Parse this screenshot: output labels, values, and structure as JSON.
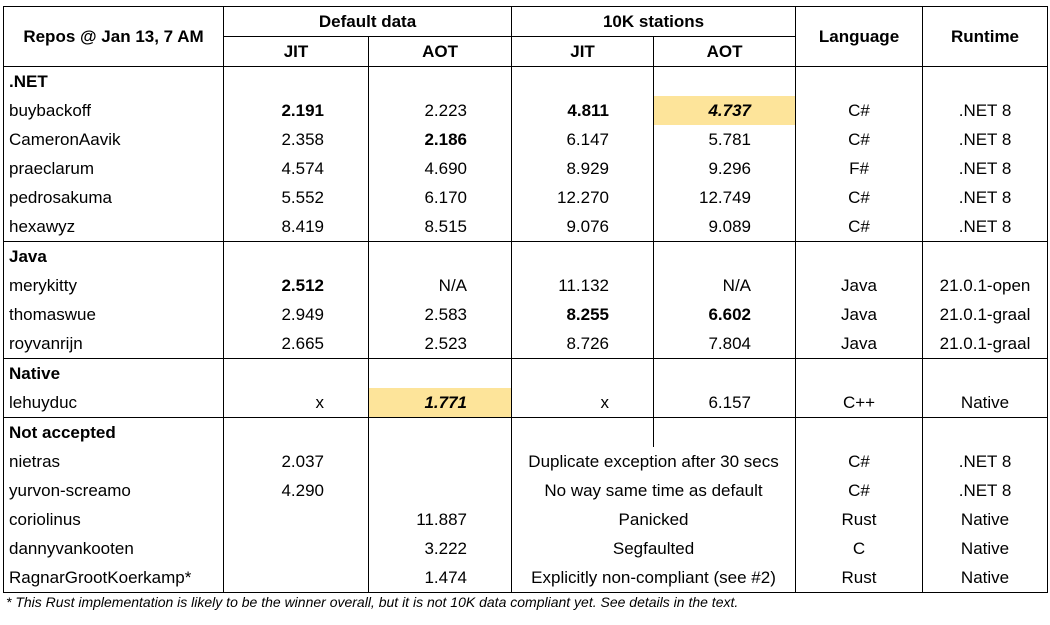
{
  "header": {
    "repos": "Repos @ Jan 13, 7 AM",
    "default_data": "Default data",
    "tenk": "10K stations",
    "jit": "JIT",
    "aot": "AOT",
    "jit2": "JIT",
    "aot2": "AOT",
    "language": "Language",
    "runtime": "Runtime"
  },
  "groups": {
    "dotnet": ".NET",
    "java": "Java",
    "native": "Native",
    "not_accepted": "Not accepted"
  },
  "rows": {
    "r1": {
      "repo": "buybackoff",
      "dj": "2.191",
      "da": "2.223",
      "tj": "4.811",
      "ta": "4.737",
      "lang": "C#",
      "rt": ".NET 8"
    },
    "r2": {
      "repo": "CameronAavik",
      "dj": "2.358",
      "da": "2.186",
      "tj": "6.147",
      "ta": "5.781",
      "lang": "C#",
      "rt": ".NET 8"
    },
    "r3": {
      "repo": "praeclarum",
      "dj": "4.574",
      "da": "4.690",
      "tj": "8.929",
      "ta": "9.296",
      "lang": "F#",
      "rt": ".NET 8"
    },
    "r4": {
      "repo": "pedrosakuma",
      "dj": "5.552",
      "da": "6.170",
      "tj": "12.270",
      "ta": "12.749",
      "lang": "C#",
      "rt": ".NET 8"
    },
    "r5": {
      "repo": "hexawyz",
      "dj": "8.419",
      "da": "8.515",
      "tj": "9.076",
      "ta": "9.089",
      "lang": "C#",
      "rt": ".NET 8"
    },
    "r6": {
      "repo": "merykitty",
      "dj": "2.512",
      "da": "N/A",
      "tj": "11.132",
      "ta": "N/A",
      "lang": "Java",
      "rt": "21.0.1-open"
    },
    "r7": {
      "repo": "thomaswue",
      "dj": "2.949",
      "da": "2.583",
      "tj": "8.255",
      "ta": "6.602",
      "lang": "Java",
      "rt": "21.0.1-graal"
    },
    "r8": {
      "repo": "royvanrijn",
      "dj": "2.665",
      "da": "2.523",
      "tj": "8.726",
      "ta": "7.804",
      "lang": "Java",
      "rt": "21.0.1-graal"
    },
    "r9": {
      "repo": "lehuyduc",
      "dj": "x",
      "da": "1.771",
      "tj": "x",
      "ta": "6.157",
      "lang": "C++",
      "rt": "Native"
    },
    "r10": {
      "repo": "nietras",
      "dj": "2.037",
      "da": "",
      "note": "Duplicate exception after 30 secs",
      "lang": "C#",
      "rt": ".NET 8"
    },
    "r11": {
      "repo": "yurvon-screamo",
      "dj": "4.290",
      "da": "",
      "note": "No way same time as default",
      "lang": "C#",
      "rt": ".NET 8"
    },
    "r12": {
      "repo": "coriolinus",
      "dj": "",
      "da": "11.887",
      "note": "Panicked",
      "lang": "Rust",
      "rt": "Native"
    },
    "r13": {
      "repo": "dannyvankooten",
      "dj": "",
      "da": "3.222",
      "note": "Segfaulted",
      "lang": "C",
      "rt": "Native"
    },
    "r14": {
      "repo": "RagnarGrootKoerkamp*",
      "dj": "",
      "da": "1.474",
      "note": "Explicitly non-compliant (see #2)",
      "lang": "Rust",
      "rt": "Native"
    }
  },
  "colors": {
    "highlight": "#fde49a"
  },
  "footnote": "* This Rust implementation is likely to be the winner overall, but it is not 10K data compliant yet. See details in the text."
}
